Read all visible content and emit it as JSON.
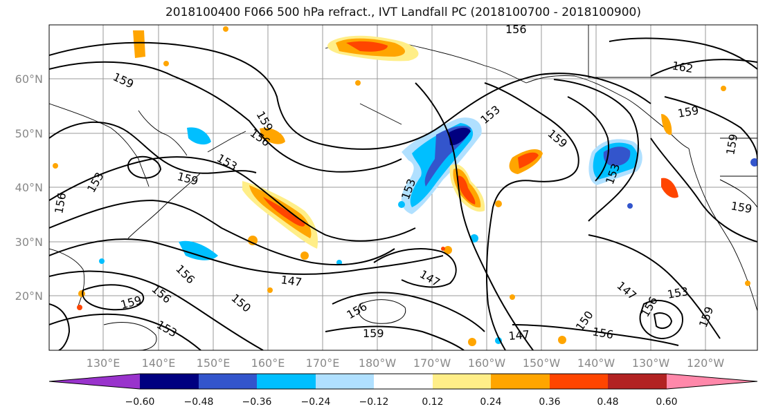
{
  "title": "2018100400 F066 500 hPa refract., IVT Landfall PC (2018100700 - 2018100900)",
  "lat_labels": [
    "60°N",
    "50°N",
    "40°N",
    "30°N",
    "20°N"
  ],
  "lon_labels": [
    "130°E",
    "140°E",
    "150°E",
    "160°E",
    "170°E",
    "180°W",
    "170°W",
    "160°W",
    "150°W",
    "140°W",
    "130°W",
    "120°W"
  ],
  "contour_labels": [
    "156",
    "159",
    "159",
    "156",
    "153",
    "159",
    "153",
    "156",
    "153",
    "159",
    "159",
    "153",
    "162",
    "159",
    "153",
    "147",
    "147",
    "156",
    "159",
    "150",
    "156",
    "159",
    "156",
    "153",
    "147",
    "150",
    "156",
    "147",
    "153",
    "156",
    "159",
    "159"
  ],
  "colorbar": {
    "colors": [
      "#9933cc",
      "#000080",
      "#3355cc",
      "#00bfff",
      "#b0e0ff",
      "#ffffff",
      "#ffee88",
      "#ffa500",
      "#ff4500",
      "#b22222",
      "#ff88aa"
    ],
    "tick_labels": [
      "−0.60",
      "−0.48",
      "−0.36",
      "−0.24",
      "−0.12",
      "0.12",
      "0.24",
      "0.36",
      "0.48",
      "0.60"
    ]
  }
}
